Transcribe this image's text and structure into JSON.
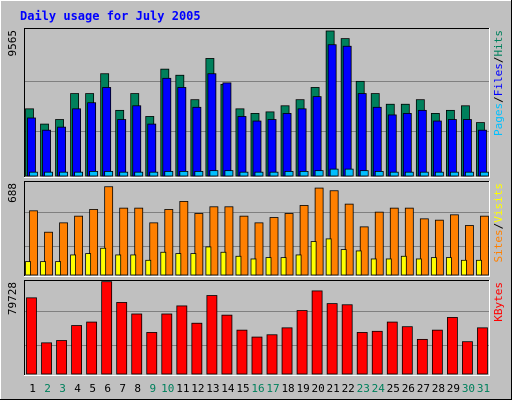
{
  "title": "Daily usage for July 2005",
  "colors": {
    "background": "#C0C0C0",
    "title": "#0000FF",
    "grid": "#808080",
    "hits": "#00805C",
    "files": "#0000FF",
    "pages": "#00C0FF",
    "visits": "#FFFF00",
    "sites": "#FF8000",
    "kbytes": "#FF0000",
    "weekend_day": "#00805C",
    "weekday": "#000000"
  },
  "chart_data": [
    {
      "type": "bar",
      "name": "hits-files-pages",
      "ymax_label": "9565",
      "ylim": [
        0,
        9565
      ],
      "grid": true,
      "side_legend": [
        "Pages",
        "/",
        "Files",
        "/",
        "Hits"
      ],
      "categories": [
        "1",
        "2",
        "3",
        "4",
        "5",
        "6",
        "7",
        "8",
        "9",
        "10",
        "11",
        "12",
        "13",
        "14",
        "15",
        "16",
        "17",
        "18",
        "19",
        "20",
        "21",
        "22",
        "23",
        "24",
        "25",
        "26",
        "27",
        "28",
        "29",
        "30",
        "31"
      ],
      "series": [
        {
          "name": "Hits",
          "values": [
            4400,
            3400,
            3700,
            5400,
            5400,
            6700,
            4300,
            5400,
            3900,
            7000,
            6600,
            5000,
            7700,
            6000,
            4400,
            4100,
            4200,
            4600,
            5000,
            5800,
            9500,
            9000,
            6200,
            5400,
            4700,
            4700,
            5000,
            4100,
            4300,
            4600,
            3500
          ]
        },
        {
          "name": "Files",
          "values": [
            3800,
            3000,
            3200,
            4400,
            4800,
            5800,
            3700,
            4600,
            3400,
            6400,
            5800,
            4500,
            6700,
            6100,
            3900,
            3600,
            3700,
            4100,
            4400,
            5200,
            8600,
            8500,
            5400,
            4500,
            4000,
            4100,
            4300,
            3600,
            3700,
            3700,
            3000
          ]
        },
        {
          "name": "Pages",
          "values": [
            250,
            250,
            250,
            250,
            300,
            300,
            250,
            250,
            250,
            300,
            300,
            300,
            350,
            350,
            250,
            250,
            250,
            300,
            300,
            350,
            450,
            450,
            350,
            300,
            250,
            250,
            250,
            250,
            250,
            250,
            250
          ]
        }
      ]
    },
    {
      "type": "bar",
      "name": "visits-sites",
      "ymax_label": "688",
      "ylim": [
        0,
        688
      ],
      "grid": true,
      "side_legend": [
        "Sites",
        "/",
        "Visits"
      ],
      "categories": [
        "1",
        "2",
        "3",
        "4",
        "5",
        "6",
        "7",
        "8",
        "9",
        "10",
        "11",
        "12",
        "13",
        "14",
        "15",
        "16",
        "17",
        "18",
        "19",
        "20",
        "21",
        "22",
        "23",
        "24",
        "25",
        "26",
        "27",
        "28",
        "29",
        "30",
        "31"
      ],
      "series": [
        {
          "name": "Sites",
          "values": [
            480,
            320,
            390,
            440,
            490,
            660,
            500,
            500,
            390,
            490,
            550,
            460,
            510,
            510,
            440,
            390,
            430,
            460,
            520,
            650,
            630,
            530,
            360,
            470,
            500,
            500,
            420,
            410,
            450,
            370,
            440
          ]
        },
        {
          "name": "Visits",
          "values": [
            100,
            100,
            100,
            150,
            160,
            200,
            150,
            150,
            110,
            170,
            160,
            160,
            210,
            170,
            140,
            120,
            130,
            130,
            150,
            250,
            270,
            190,
            180,
            120,
            120,
            140,
            120,
            130,
            130,
            110,
            110
          ]
        }
      ]
    },
    {
      "type": "bar",
      "name": "kbytes",
      "ymax_label": "79728",
      "ylim": [
        0,
        79728
      ],
      "grid": true,
      "side_legend": [
        "KBytes"
      ],
      "categories": [
        "1",
        "2",
        "3",
        "4",
        "5",
        "6",
        "7",
        "8",
        "9",
        "10",
        "11",
        "12",
        "13",
        "14",
        "15",
        "16",
        "17",
        "18",
        "19",
        "20",
        "21",
        "22",
        "23",
        "24",
        "25",
        "26",
        "27",
        "28",
        "29",
        "30",
        "31"
      ],
      "series": [
        {
          "name": "KBytes",
          "values": [
            66000,
            27000,
            29000,
            42000,
            45000,
            80000,
            62000,
            52000,
            36000,
            52000,
            59000,
            44000,
            68000,
            51000,
            38000,
            32000,
            34000,
            40000,
            55000,
            72000,
            61000,
            60000,
            36000,
            37000,
            45000,
            41000,
            30000,
            38000,
            49000,
            28000,
            40000
          ]
        }
      ]
    }
  ],
  "days": [
    "1",
    "2",
    "3",
    "4",
    "5",
    "6",
    "7",
    "8",
    "9",
    "10",
    "11",
    "12",
    "13",
    "14",
    "15",
    "16",
    "17",
    "18",
    "19",
    "20",
    "21",
    "22",
    "23",
    "24",
    "25",
    "26",
    "27",
    "28",
    "29",
    "30",
    "31"
  ],
  "weekend_days": [
    "2",
    "3",
    "9",
    "10",
    "16",
    "17",
    "23",
    "24",
    "30",
    "31"
  ]
}
